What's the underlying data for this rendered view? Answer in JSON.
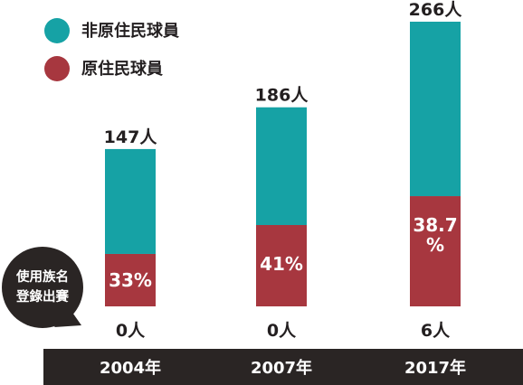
{
  "colors": {
    "non_indigenous": "#16a2a5",
    "indigenous": "#a7373f",
    "dark": "#2a2524",
    "text": "#231f20",
    "white": "#ffffff"
  },
  "legend": [
    {
      "label": "非原住民球員",
      "color": "#16a2a5"
    },
    {
      "label": "原住民球員",
      "color": "#a7373f"
    }
  ],
  "callout": {
    "lines": [
      "使用族名",
      "登錄出賽"
    ]
  },
  "chart_data": {
    "type": "bar",
    "stacked": true,
    "categories": [
      "2004年",
      "2007年",
      "2017年"
    ],
    "totals": [
      147,
      186,
      266
    ],
    "total_labels": [
      "147人",
      "186人",
      "266人"
    ],
    "series": [
      {
        "name": "非原住民球員",
        "values": [
          98,
          110,
          163
        ]
      },
      {
        "name": "原住民球員",
        "values": [
          49,
          76,
          103
        ]
      }
    ],
    "indigenous_share_labels": [
      [
        "33%"
      ],
      [
        "41%"
      ],
      [
        "38.7",
        "%"
      ]
    ],
    "indigenous_share_values": [
      33,
      41,
      38.7
    ],
    "tribal_name_counts": [
      0,
      0,
      6
    ],
    "tribal_name_labels": [
      "0人",
      "0人",
      "6人"
    ],
    "ylim": [
      0,
      266
    ],
    "legend_position": "top-left",
    "grid": false
  }
}
